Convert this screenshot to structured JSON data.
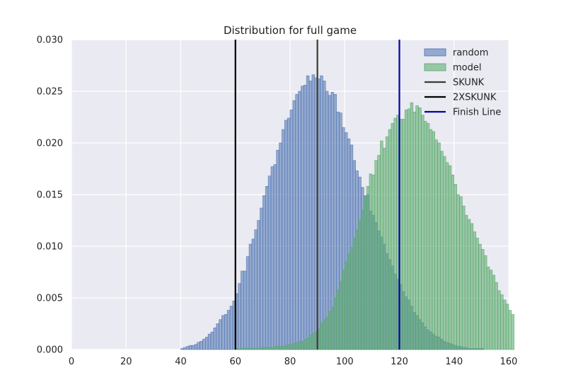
{
  "chart_data": {
    "type": "bar",
    "title": "Distribution for full game",
    "xlabel": "",
    "ylabel": "",
    "xlim": [
      0,
      160
    ],
    "ylim": [
      0,
      0.03
    ],
    "xticks": [
      0,
      20,
      40,
      60,
      80,
      100,
      120,
      140,
      160
    ],
    "yticks": [
      0.0,
      0.005,
      0.01,
      0.015,
      0.02,
      0.025,
      0.03
    ],
    "xtick_labels": [
      "0",
      "20",
      "40",
      "60",
      "80",
      "100",
      "120",
      "140",
      "160"
    ],
    "ytick_labels": [
      "0.000",
      "0.005",
      "0.010",
      "0.015",
      "0.020",
      "0.025",
      "0.030"
    ],
    "grid": true,
    "legend_position": "top-right",
    "bin_width": 1,
    "series": [
      {
        "name": "random",
        "color": "#4c72b0",
        "bins_start": 40,
        "values": [
          0.0001,
          0.0002,
          0.0003,
          0.0004,
          0.0004,
          0.0005,
          0.0007,
          0.0008,
          0.001,
          0.0012,
          0.0015,
          0.0017,
          0.0021,
          0.0025,
          0.0029,
          0.0033,
          0.0034,
          0.0038,
          0.0042,
          0.0047,
          0.0054,
          0.0064,
          0.0076,
          0.0076,
          0.009,
          0.0102,
          0.0107,
          0.0116,
          0.0125,
          0.0137,
          0.0149,
          0.0158,
          0.0168,
          0.0177,
          0.0179,
          0.0193,
          0.02,
          0.0213,
          0.0222,
          0.0224,
          0.0232,
          0.0241,
          0.0247,
          0.025,
          0.0255,
          0.0256,
          0.0265,
          0.026,
          0.0266,
          0.0263,
          0.0262,
          0.0265,
          0.026,
          0.025,
          0.0246,
          0.0249,
          0.0247,
          0.023,
          0.0229,
          0.0215,
          0.021,
          0.0204,
          0.0198,
          0.0183,
          0.0173,
          0.0167,
          0.0157,
          0.0149,
          0.015,
          0.0134,
          0.013,
          0.0123,
          0.0115,
          0.0109,
          0.0102,
          0.0093,
          0.0087,
          0.0081,
          0.0073,
          0.0068,
          0.0063,
          0.0056,
          0.0051,
          0.0048,
          0.0042,
          0.0036,
          0.0033,
          0.0029,
          0.0026,
          0.0022,
          0.0019,
          0.0017,
          0.0015,
          0.0013,
          0.0012,
          0.001,
          0.0008,
          0.0007,
          0.0006,
          0.0005,
          0.0004,
          0.0003,
          0.0003,
          0.0002,
          0.0002,
          0.0001,
          0.0001,
          0.0001,
          0.0001,
          0.0001,
          0.0001,
          0.0,
          0.0,
          0.0,
          0.0,
          0.0,
          0.0,
          0.0,
          0.0,
          0.0
        ]
      },
      {
        "name": "model",
        "color": "#55a868",
        "bins_start": 60,
        "values": [
          0.0001,
          0.0001,
          0.0001,
          0.0001,
          0.0001,
          0.0001,
          0.0001,
          0.0001,
          0.0001,
          0.0002,
          0.0002,
          0.0002,
          0.0002,
          0.0002,
          0.0003,
          0.0003,
          0.0003,
          0.0003,
          0.0004,
          0.0005,
          0.0005,
          0.0006,
          0.0007,
          0.0008,
          0.0008,
          0.001,
          0.0011,
          0.0014,
          0.0016,
          0.0017,
          0.002,
          0.0026,
          0.0029,
          0.0031,
          0.0037,
          0.0041,
          0.005,
          0.0058,
          0.0066,
          0.0077,
          0.0085,
          0.0093,
          0.0099,
          0.0108,
          0.0116,
          0.0125,
          0.0135,
          0.0148,
          0.0158,
          0.017,
          0.0169,
          0.0183,
          0.0188,
          0.0202,
          0.0195,
          0.0206,
          0.0213,
          0.0219,
          0.0224,
          0.0227,
          0.0223,
          0.0223,
          0.0232,
          0.0233,
          0.0239,
          0.023,
          0.0236,
          0.0234,
          0.0227,
          0.0221,
          0.0219,
          0.0213,
          0.0211,
          0.0203,
          0.02,
          0.0192,
          0.0187,
          0.0181,
          0.0178,
          0.0169,
          0.016,
          0.015,
          0.0148,
          0.0139,
          0.013,
          0.0126,
          0.0122,
          0.0114,
          0.0108,
          0.0102,
          0.0097,
          0.0091,
          0.008,
          0.0077,
          0.0072,
          0.0065,
          0.0057,
          0.0053,
          0.0048,
          0.0044,
          0.0038,
          0.0034
        ]
      }
    ],
    "vlines": [
      {
        "name": "SKUNK",
        "x": 90,
        "color": "#3b3b2f"
      },
      {
        "name": "2XSKUNK",
        "x": 60,
        "color": "#000000"
      },
      {
        "name": "Finish Line",
        "x": 120,
        "color": "#0000aa"
      }
    ],
    "legend": [
      {
        "label": "random",
        "kind": "patch",
        "color": "#4c72b0"
      },
      {
        "label": "model",
        "kind": "patch",
        "color": "#55a868"
      },
      {
        "label": "SKUNK",
        "kind": "line",
        "color": "#3b3b2f"
      },
      {
        "label": "2XSKUNK",
        "kind": "line",
        "color": "#000000"
      },
      {
        "label": "Finish Line",
        "kind": "line",
        "color": "#0000aa"
      }
    ]
  }
}
